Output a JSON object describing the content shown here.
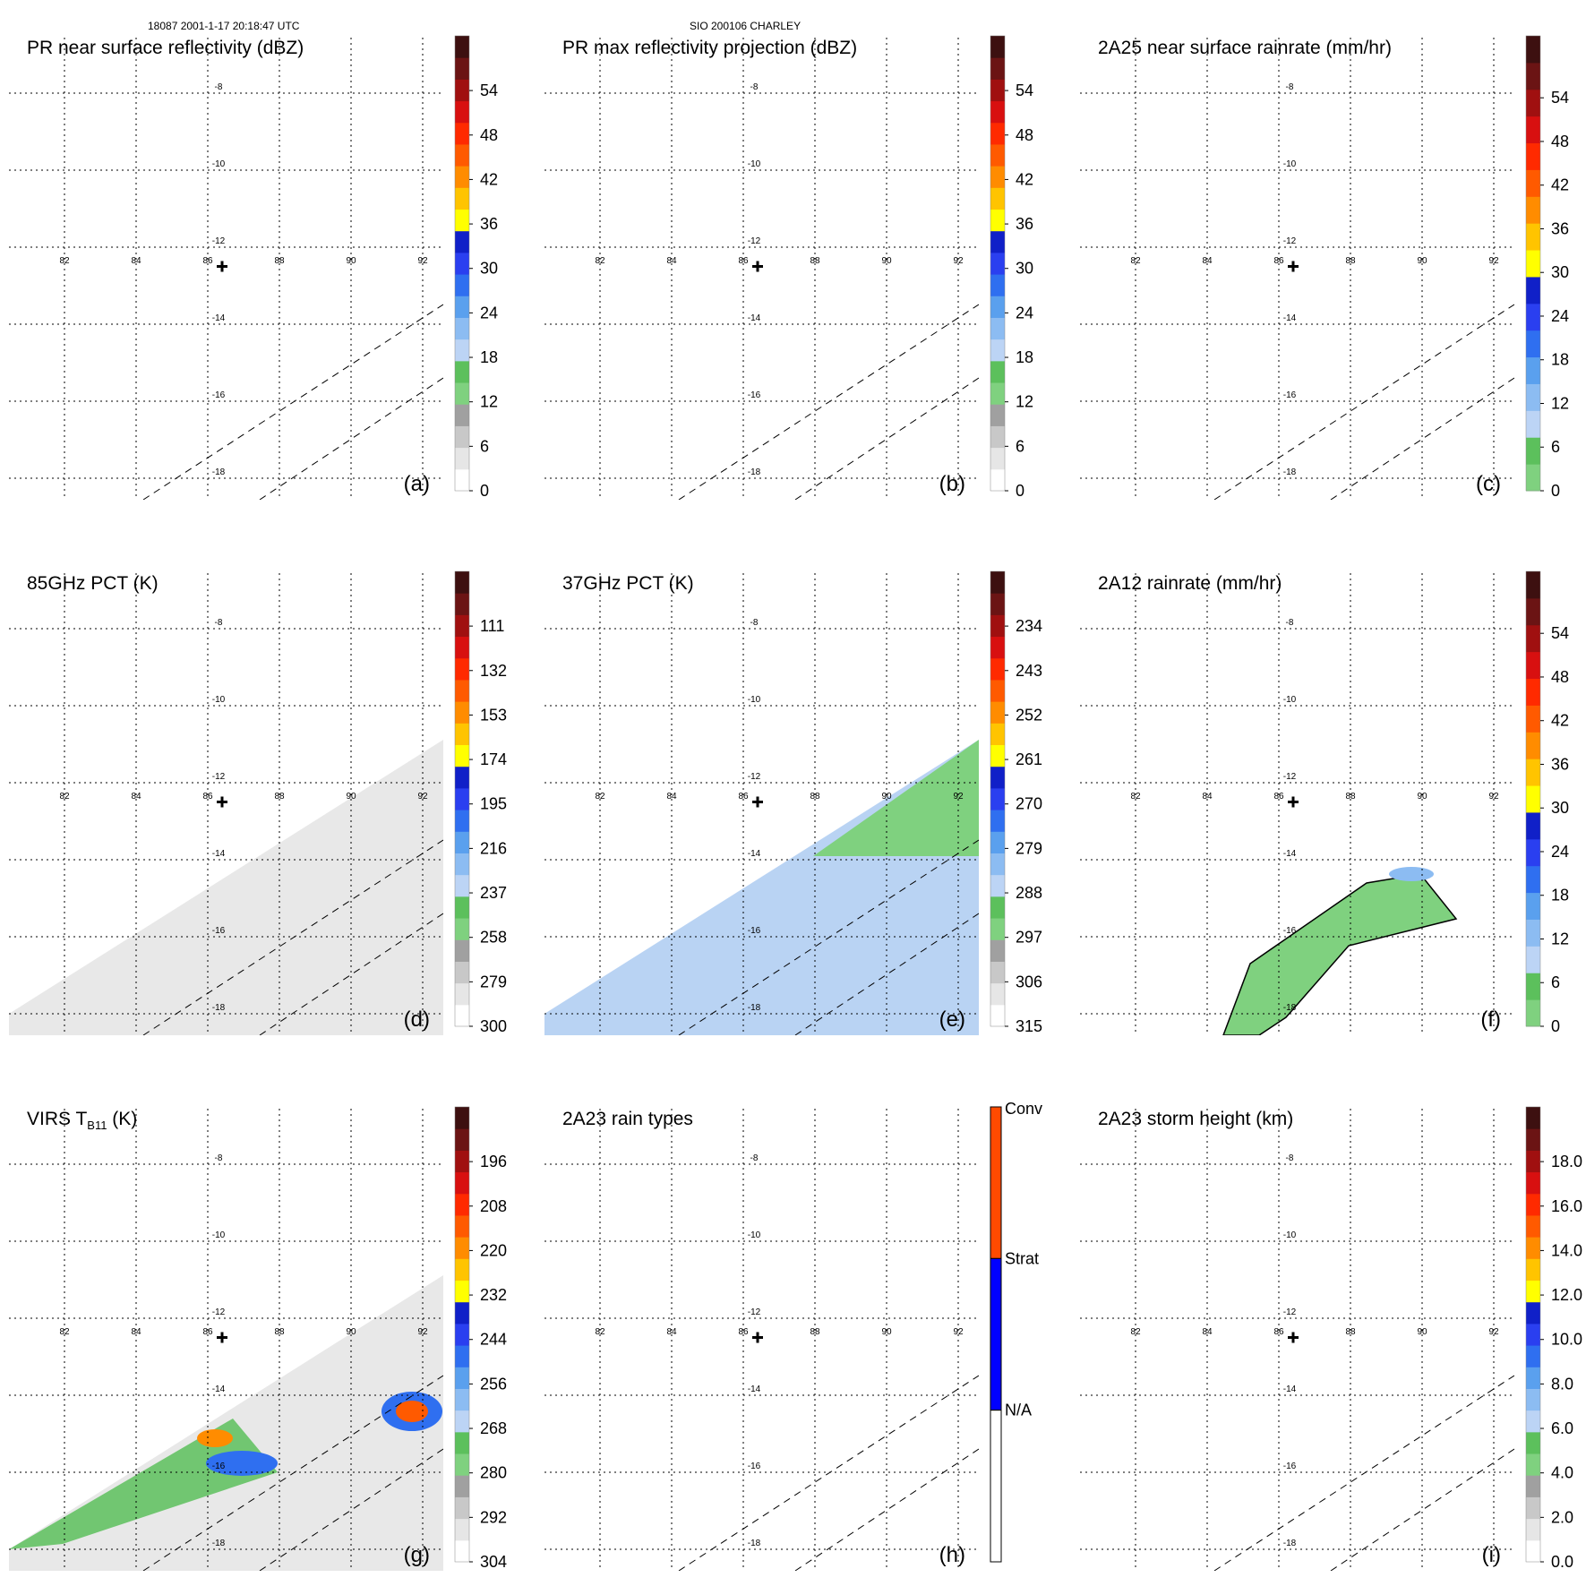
{
  "header": {
    "left": "18087 2001-1-17 20:18:47 UTC",
    "center": "SIO 200106 CHARLEY"
  },
  "map": {
    "lon_ticks": [
      82,
      84,
      86,
      88,
      90,
      92
    ],
    "lat_ticks": [
      -8,
      -10,
      -12,
      -14,
      -16,
      -18
    ],
    "center_marker": {
      "lon": 86.4,
      "lat": -12.5
    }
  },
  "panels": [
    {
      "id": "a",
      "title": "PR near surface reflectivity (dBZ)",
      "title_sub": "",
      "title_post": "",
      "letter": "(a)",
      "colorbar": {
        "labels": [
          "0",
          "6",
          "12",
          "18",
          "24",
          "30",
          "36",
          "42",
          "48",
          "54"
        ],
        "colors": [
          "#ffffff",
          "#e6e6e6",
          "#c8c8c8",
          "#a0a0a0",
          "#7fd17f",
          "#5cc05c",
          "#bcd4f5",
          "#8cbcf2",
          "#5aa0ee",
          "#2f6ff0",
          "#2a3ff0",
          "#1020c8",
          "#ffff00",
          "#ffc400",
          "#ff8c00",
          "#ff5a00",
          "#ff2a00",
          "#d81010",
          "#a01010",
          "#6b1414",
          "#3d1010"
        ]
      },
      "swath": "narrow"
    },
    {
      "id": "b",
      "title": "PR max reflectivity projection (dBZ)",
      "title_sub": "",
      "title_post": "",
      "letter": "(b)",
      "colorbar": {
        "labels": [
          "0",
          "6",
          "12",
          "18",
          "24",
          "30",
          "36",
          "42",
          "48",
          "54"
        ],
        "colors": [
          "#ffffff",
          "#e6e6e6",
          "#c8c8c8",
          "#a0a0a0",
          "#7fd17f",
          "#5cc05c",
          "#bcd4f5",
          "#8cbcf2",
          "#5aa0ee",
          "#2f6ff0",
          "#2a3ff0",
          "#1020c8",
          "#ffff00",
          "#ffc400",
          "#ff8c00",
          "#ff5a00",
          "#ff2a00",
          "#d81010",
          "#a01010",
          "#6b1414",
          "#3d1010"
        ]
      },
      "swath": "narrow"
    },
    {
      "id": "c",
      "title": "2A25 near surface rainrate (mm/hr)",
      "title_sub": "",
      "title_post": "",
      "letter": "(c)",
      "colorbar": {
        "labels": [
          "0",
          "6",
          "12",
          "18",
          "24",
          "30",
          "36",
          "42",
          "48",
          "54"
        ],
        "colors": [
          "#7fd17f",
          "#5cc05c",
          "#bcd4f5",
          "#8cbcf2",
          "#5aa0ee",
          "#2f6ff0",
          "#2a3ff0",
          "#1020c8",
          "#ffff00",
          "#ffc400",
          "#ff8c00",
          "#ff5a00",
          "#ff2a00",
          "#d81010",
          "#a01010",
          "#6b1414",
          "#3d1010"
        ]
      },
      "swath": "narrow"
    },
    {
      "id": "d",
      "title": "85GHz PCT (K)",
      "title_sub": "",
      "title_post": "",
      "letter": "(d)",
      "colorbar": {
        "labels": [
          "300",
          "279",
          "258",
          "237",
          "216",
          "195",
          "174",
          "153",
          "132",
          "111"
        ],
        "colors": [
          "#ffffff",
          "#e6e6e6",
          "#c8c8c8",
          "#a0a0a0",
          "#7fd17f",
          "#5cc05c",
          "#bcd4f5",
          "#8cbcf2",
          "#5aa0ee",
          "#2f6ff0",
          "#2a3ff0",
          "#1020c8",
          "#ffff00",
          "#ffc400",
          "#ff8c00",
          "#ff5a00",
          "#ff2a00",
          "#d81010",
          "#a01010",
          "#6b1414",
          "#3d1010"
        ]
      },
      "swath": "wide"
    },
    {
      "id": "e",
      "title": "37GHz PCT (K)",
      "title_sub": "",
      "title_post": "",
      "letter": "(e)",
      "colorbar": {
        "labels": [
          "315",
          "306",
          "297",
          "288",
          "279",
          "270",
          "261",
          "252",
          "243",
          "234"
        ],
        "colors": [
          "#ffffff",
          "#e6e6e6",
          "#c8c8c8",
          "#a0a0a0",
          "#7fd17f",
          "#5cc05c",
          "#bcd4f5",
          "#8cbcf2",
          "#5aa0ee",
          "#2f6ff0",
          "#2a3ff0",
          "#1020c8",
          "#ffff00",
          "#ffc400",
          "#ff8c00",
          "#ff5a00",
          "#ff2a00",
          "#d81010",
          "#a01010",
          "#6b1414",
          "#3d1010"
        ]
      },
      "swath": "wide"
    },
    {
      "id": "f",
      "title": "2A12 rainrate (mm/hr)",
      "title_sub": "",
      "title_post": "",
      "letter": "(f)",
      "colorbar": {
        "labels": [
          "0",
          "6",
          "12",
          "18",
          "24",
          "30",
          "36",
          "42",
          "48",
          "54"
        ],
        "colors": [
          "#7fd17f",
          "#5cc05c",
          "#bcd4f5",
          "#8cbcf2",
          "#5aa0ee",
          "#2f6ff0",
          "#2a3ff0",
          "#1020c8",
          "#ffff00",
          "#ffc400",
          "#ff8c00",
          "#ff5a00",
          "#ff2a00",
          "#d81010",
          "#a01010",
          "#6b1414",
          "#3d1010"
        ]
      },
      "swath": "none"
    },
    {
      "id": "g",
      "title": "VIRS T",
      "title_sub": "B11",
      "title_post": " (K)",
      "letter": "(g)",
      "colorbar": {
        "labels": [
          "304",
          "292",
          "280",
          "268",
          "256",
          "244",
          "232",
          "220",
          "208",
          "196"
        ],
        "colors": [
          "#ffffff",
          "#e6e6e6",
          "#c8c8c8",
          "#a0a0a0",
          "#7fd17f",
          "#5cc05c",
          "#bcd4f5",
          "#8cbcf2",
          "#5aa0ee",
          "#2f6ff0",
          "#2a3ff0",
          "#1020c8",
          "#ffff00",
          "#ffc400",
          "#ff8c00",
          "#ff5a00",
          "#ff2a00",
          "#d81010",
          "#a01010",
          "#6b1414",
          "#3d1010"
        ]
      },
      "swath": "wide"
    },
    {
      "id": "h",
      "title": "2A23 rain types",
      "title_sub": "",
      "title_post": "",
      "letter": "(h)",
      "colorbar": {
        "labels": [
          "N/A",
          "Strat",
          "Conv"
        ],
        "colors": [
          "#ffffff",
          "#0000ff",
          "#ff4a00"
        ],
        "categorical": true
      },
      "swath": "narrow"
    },
    {
      "id": "i",
      "title": "2A23 storm height (km)",
      "title_sub": "",
      "title_post": "",
      "letter": "(i)",
      "colorbar": {
        "labels": [
          "0.0",
          "2.0",
          "4.0",
          "6.0",
          "8.0",
          "10.0",
          "12.0",
          "14.0",
          "16.0",
          "18.0"
        ],
        "colors": [
          "#ffffff",
          "#e6e6e6",
          "#c8c8c8",
          "#a0a0a0",
          "#7fd17f",
          "#5cc05c",
          "#bcd4f5",
          "#8cbcf2",
          "#5aa0ee",
          "#2f6ff0",
          "#2a3ff0",
          "#1020c8",
          "#ffff00",
          "#ffc400",
          "#ff8c00",
          "#ff5a00",
          "#ff2a00",
          "#d81010",
          "#a01010",
          "#6b1414",
          "#3d1010"
        ]
      },
      "swath": "narrow"
    }
  ]
}
